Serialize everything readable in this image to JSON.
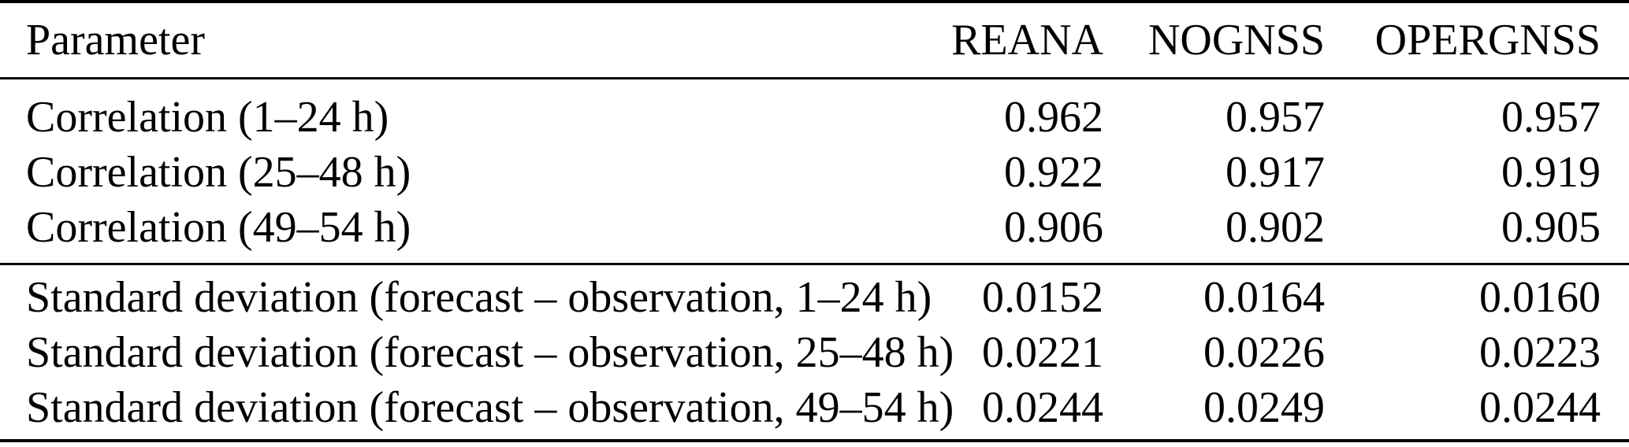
{
  "colors": {
    "background": "#ffffff",
    "text": "#000000",
    "rule": "#000000"
  },
  "table": {
    "columns": {
      "parameter": "Parameter",
      "reana": "REANA",
      "nognss": "NOGNSS",
      "opergnss": "OPERGNSS"
    },
    "sections": [
      {
        "name": "correlation",
        "rows": [
          {
            "parameter": "Correlation (1–24 h)",
            "values": [
              "0.962",
              "0.957",
              "0.957"
            ]
          },
          {
            "parameter": "Correlation (25–48 h)",
            "values": [
              "0.922",
              "0.917",
              "0.919"
            ]
          },
          {
            "parameter": "Correlation (49–54 h)",
            "values": [
              "0.906",
              "0.902",
              "0.905"
            ]
          }
        ]
      },
      {
        "name": "standard-deviation",
        "rows": [
          {
            "parameter": "Standard deviation (forecast – observation, 1–24 h)",
            "values": [
              "0.0152",
              "0.0164",
              "0.0160"
            ]
          },
          {
            "parameter": "Standard deviation (forecast – observation, 25–48 h)",
            "values": [
              "0.0221",
              "0.0226",
              "0.0223"
            ]
          },
          {
            "parameter": "Standard deviation (forecast – observation, 49–54 h)",
            "values": [
              "0.0244",
              "0.0249",
              "0.0244"
            ]
          }
        ]
      }
    ]
  }
}
